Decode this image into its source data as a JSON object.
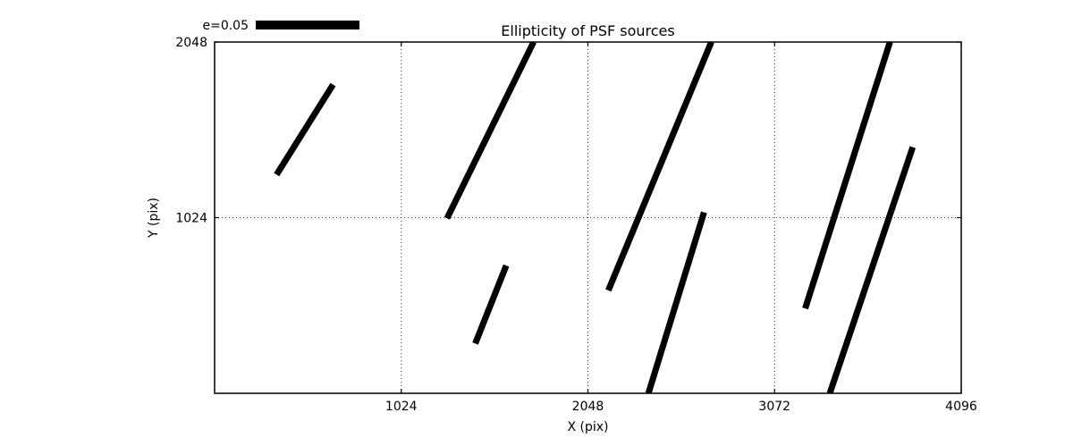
{
  "figure": {
    "background": "#ffffff",
    "foreground": "#000000"
  },
  "chart_data": {
    "type": "line",
    "subtype": "ellipticity-whisker-plot",
    "title": "Ellipticity of PSF sources",
    "xlabel": "X (pix)",
    "ylabel": "Y (pix)",
    "xlim": [
      0,
      4096
    ],
    "ylim": [
      0,
      2048
    ],
    "xticks": [
      1024,
      2048,
      3072,
      4096
    ],
    "yticks": [
      1024,
      2048
    ],
    "grid": true,
    "grid_style": "dotted",
    "line_color": "#000000",
    "line_width": 7,
    "legend": {
      "label": "e=0.05",
      "position": "top-left-outside",
      "scale_bar": true
    },
    "segments": [
      {
        "x1": 340,
        "y1": 1275,
        "x2": 650,
        "y2": 1800
      },
      {
        "x1": 1275,
        "y1": 1020,
        "x2": 1750,
        "y2": 2048
      },
      {
        "x1": 1430,
        "y1": 290,
        "x2": 1600,
        "y2": 745
      },
      {
        "x1": 2160,
        "y1": 600,
        "x2": 2725,
        "y2": 2048
      },
      {
        "x1": 2380,
        "y1": 0,
        "x2": 2685,
        "y2": 1055
      },
      {
        "x1": 3240,
        "y1": 495,
        "x2": 3705,
        "y2": 2048
      },
      {
        "x1": 3375,
        "y1": 0,
        "x2": 3830,
        "y2": 1435
      }
    ]
  }
}
